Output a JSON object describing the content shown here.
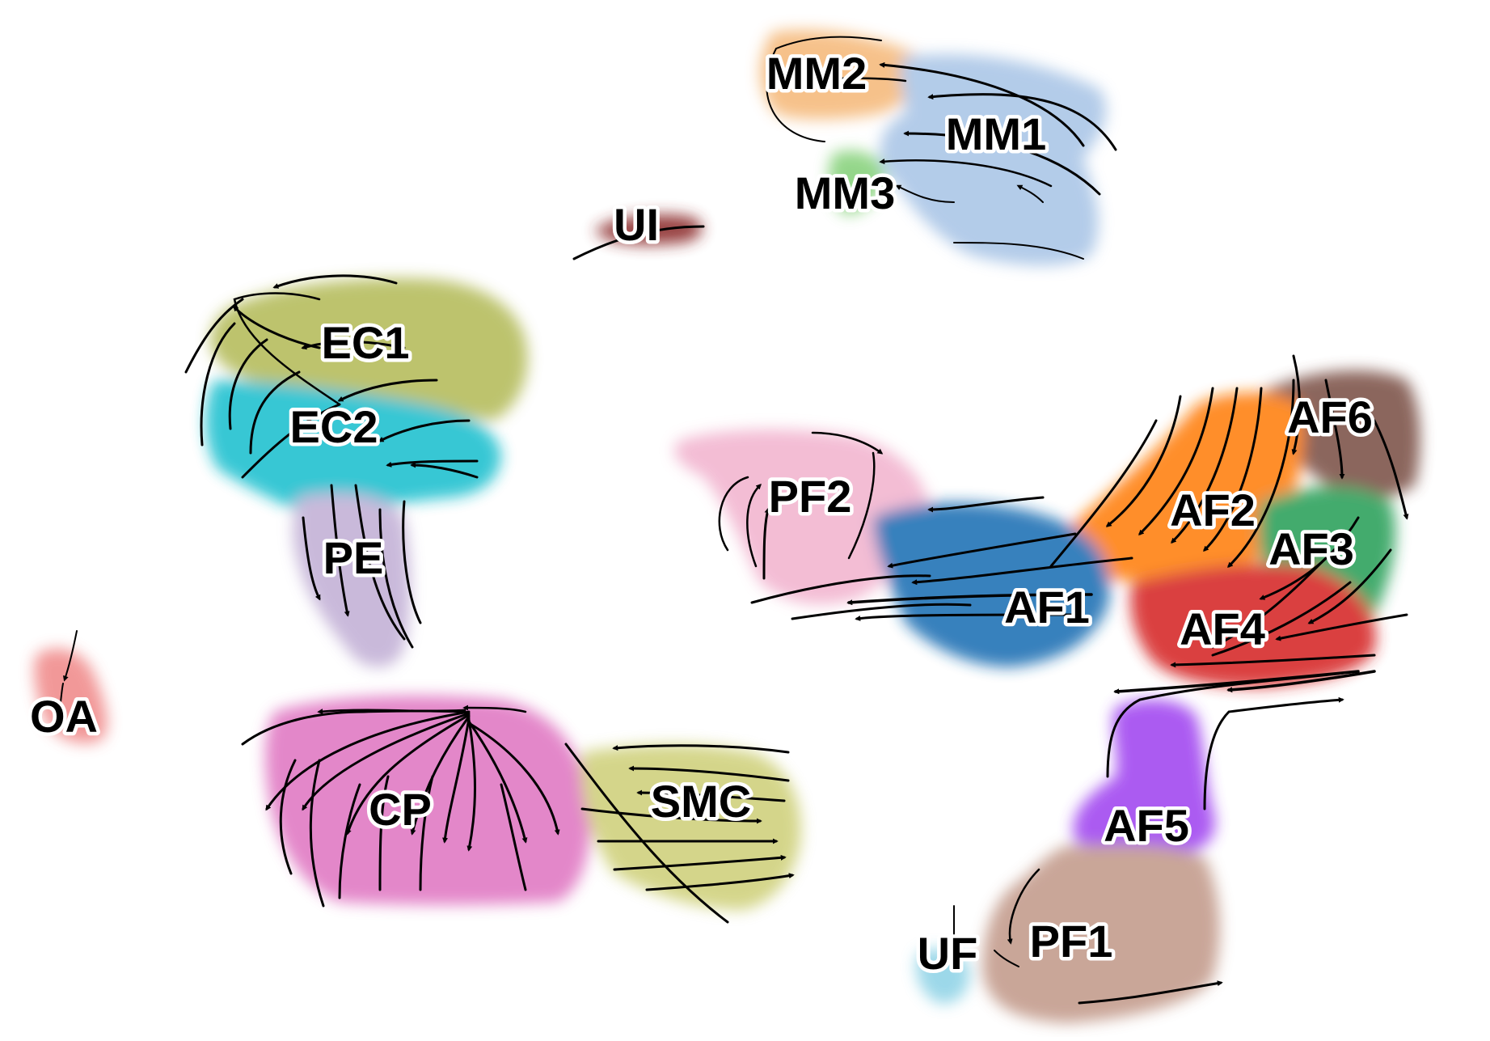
{
  "figure": {
    "type": "umap_velocity_stream",
    "clusters": [
      {
        "label": "MM2",
        "color": "#f5b97a"
      },
      {
        "label": "MM1",
        "color": "#a9c5e6"
      },
      {
        "label": "MM3",
        "color": "#86d17a"
      },
      {
        "label": "UI",
        "color": "#8b2a2a"
      },
      {
        "label": "EC1",
        "color": "#b4bb5a"
      },
      {
        "label": "EC2",
        "color": "#1ec0cf"
      },
      {
        "label": "PE",
        "color": "#c2b0d6"
      },
      {
        "label": "PF2",
        "color": "#f2b4cf"
      },
      {
        "label": "AF6",
        "color": "#7b5146"
      },
      {
        "label": "AF2",
        "color": "#ff7f0e"
      },
      {
        "label": "AF3",
        "color": "#2ca05a"
      },
      {
        "label": "AF1",
        "color": "#1f6fb4"
      },
      {
        "label": "AF4",
        "color": "#d62728"
      },
      {
        "label": "OA",
        "color": "#f08a8a"
      },
      {
        "label": "CP",
        "color": "#e077c2"
      },
      {
        "label": "SMC",
        "color": "#cfd07a"
      },
      {
        "label": "AF5",
        "color": "#a045f0"
      },
      {
        "label": "PF1",
        "color": "#c29a8a"
      },
      {
        "label": "UF",
        "color": "#8fd3e6"
      }
    ]
  }
}
